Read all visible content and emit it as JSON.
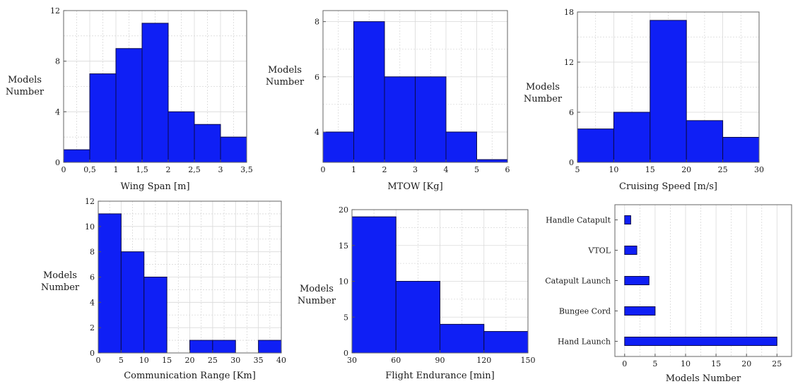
{
  "style": {
    "bar_color": "#0f1ff5",
    "bar_edge": "#0a0a4a",
    "grid_color": "#d9d9d9"
  },
  "chart_data": [
    {
      "id": "wing-span",
      "type": "bar",
      "orientation": "vertical",
      "bin_edges": [
        0,
        0.5,
        1,
        1.5,
        2,
        2.5,
        3,
        3.5
      ],
      "values": [
        1,
        7,
        9,
        11,
        4,
        3,
        2
      ],
      "xticks": [
        0,
        0.5,
        1,
        1.5,
        2,
        2.5,
        3,
        3.5
      ],
      "xtick_labels": [
        "0",
        "0,5",
        "1",
        "1,5",
        "2",
        "2,5",
        "3",
        "3,5"
      ],
      "yticks": [
        0,
        4,
        8,
        12
      ],
      "xlim": [
        0,
        3.5
      ],
      "ylim": [
        0,
        12
      ],
      "xlabel": "Wing Span [m]",
      "ylabel": [
        "Models",
        "Number"
      ],
      "grid": true
    },
    {
      "id": "mtow",
      "type": "bar",
      "orientation": "vertical",
      "bin_edges": [
        0,
        1,
        2,
        3,
        4,
        5,
        6
      ],
      "values": [
        4,
        8,
        6,
        6,
        4,
        3
      ],
      "xticks": [
        0,
        1,
        2,
        3,
        4,
        5,
        6
      ],
      "xtick_labels": [
        "0",
        "1",
        "2",
        "3",
        "4",
        "5",
        "6"
      ],
      "yticks": [
        4,
        6,
        8
      ],
      "xlim": [
        0,
        6
      ],
      "ylim": [
        2.9,
        8.4
      ],
      "xlabel": "MTOW [Kg]",
      "ylabel": [
        "Models",
        "Number"
      ],
      "grid": true
    },
    {
      "id": "cruising-speed",
      "type": "bar",
      "orientation": "vertical",
      "bin_edges": [
        5,
        10,
        15,
        20,
        25,
        30
      ],
      "values": [
        4,
        6,
        17,
        5,
        3
      ],
      "xticks": [
        5,
        10,
        15,
        20,
        25,
        30
      ],
      "xtick_labels": [
        "5",
        "10",
        "15",
        "20",
        "25",
        "30"
      ],
      "yticks": [
        0,
        6,
        12,
        18
      ],
      "xlim": [
        5,
        30
      ],
      "ylim": [
        0,
        18
      ],
      "xlabel": "Cruising Speed [m/s]",
      "ylabel": [
        "Models",
        "Number"
      ],
      "grid": true
    },
    {
      "id": "communication-range",
      "type": "bar",
      "orientation": "vertical",
      "bin_edges": [
        0,
        5,
        10,
        15,
        20,
        25,
        30,
        35,
        40
      ],
      "values": [
        11,
        8,
        6,
        0,
        1,
        1,
        0,
        1
      ],
      "xticks": [
        0,
        5,
        10,
        15,
        20,
        25,
        30,
        35,
        40
      ],
      "xtick_labels": [
        "0",
        "5",
        "10",
        "15",
        "20",
        "25",
        "30",
        "35",
        "40"
      ],
      "yticks": [
        0,
        2,
        4,
        6,
        8,
        10,
        12
      ],
      "xlim": [
        0,
        40
      ],
      "ylim": [
        0,
        12
      ],
      "xlabel": "Communication Range [Km]",
      "ylabel": [
        "Models",
        "Number"
      ],
      "grid": true
    },
    {
      "id": "flight-endurance",
      "type": "bar",
      "orientation": "vertical",
      "bin_edges": [
        30,
        60,
        90,
        120,
        150
      ],
      "values": [
        19,
        10,
        4,
        3
      ],
      "xticks": [
        30,
        60,
        90,
        120,
        150
      ],
      "xtick_labels": [
        "30",
        "60",
        "90",
        "120",
        "150"
      ],
      "yticks": [
        0,
        5,
        10,
        15,
        20
      ],
      "xlim": [
        30,
        150
      ],
      "ylim": [
        0,
        20
      ],
      "xlabel": "Flight Endurance [min]",
      "ylabel": [
        "Models",
        "Number"
      ],
      "grid": true
    },
    {
      "id": "launch-type",
      "type": "bar",
      "orientation": "horizontal",
      "categories": [
        "Hand Launch",
        "Bungee Cord",
        "Catapult Launch",
        "VTOL",
        "Handle Catapult"
      ],
      "values": [
        25,
        5,
        4,
        2,
        1
      ],
      "xticks": [
        0,
        5,
        10,
        15,
        20,
        25
      ],
      "xtick_labels": [
        "0",
        "5",
        "10",
        "15",
        "20",
        "25"
      ],
      "xlim": [
        -1.6,
        27.4
      ],
      "xlabel": "Models Number",
      "grid": true
    }
  ]
}
